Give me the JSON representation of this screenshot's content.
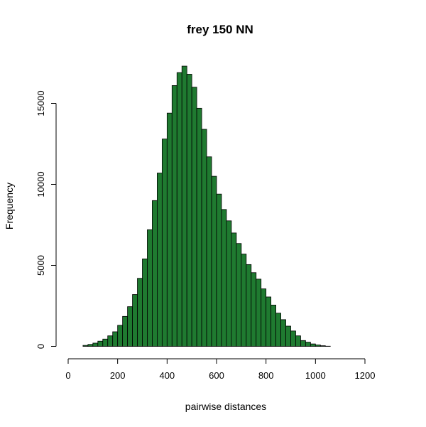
{
  "chart_data": {
    "type": "bar",
    "title": "frey 150 NN",
    "xlabel": "pairwise distances",
    "ylabel": "Frequency",
    "bar_color": "#1f7a30",
    "bin_width": 20,
    "bins_start": 0,
    "values": [
      0,
      0,
      0,
      60,
      120,
      200,
      320,
      450,
      650,
      900,
      1300,
      1850,
      2450,
      3200,
      4200,
      5400,
      7200,
      9000,
      10700,
      12800,
      14400,
      16100,
      16900,
      17300,
      16800,
      16000,
      14700,
      13400,
      11700,
      10500,
      9400,
      8450,
      7750,
      7000,
      6350,
      5700,
      5050,
      4550,
      4150,
      3550,
      3050,
      2550,
      2050,
      1650,
      1250,
      950,
      650,
      360,
      260,
      150,
      90,
      40,
      10,
      0,
      0,
      0,
      0,
      0,
      0,
      0
    ],
    "xlim": [
      0,
      1200
    ],
    "ylim": [
      0,
      17500
    ],
    "xticks": [
      0,
      200,
      400,
      600,
      800,
      1000,
      1200
    ],
    "yticks": [
      0,
      5000,
      10000,
      15000
    ],
    "grid": false,
    "legend": "none"
  }
}
